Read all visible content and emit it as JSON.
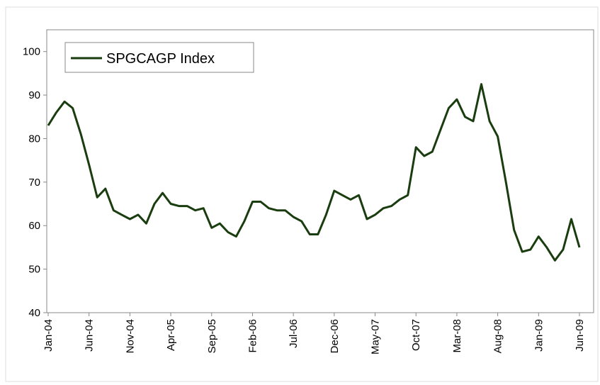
{
  "chart_data": {
    "type": "line",
    "categories": [
      "Jan-04",
      null,
      null,
      null,
      null,
      "Jun-04",
      null,
      null,
      null,
      null,
      "Nov-04",
      null,
      null,
      null,
      null,
      "Apr-05",
      null,
      null,
      null,
      null,
      "Sep-05",
      null,
      null,
      null,
      null,
      "Feb-06",
      null,
      null,
      null,
      null,
      "Jul-06",
      null,
      null,
      null,
      null,
      "Dec-06",
      null,
      null,
      null,
      null,
      "May-07",
      null,
      null,
      null,
      null,
      "Oct-07",
      null,
      null,
      null,
      null,
      "Mar-08",
      null,
      null,
      null,
      null,
      "Aug-08",
      null,
      null,
      null,
      null,
      "Jan-09",
      null,
      null,
      null,
      null,
      "Jun-09"
    ],
    "series": [
      {
        "name": "SPGCAGP Index",
        "color": "#1a3d0f",
        "values": [
          83,
          86,
          88.5,
          87,
          81,
          74,
          66.5,
          68.5,
          63.5,
          62.5,
          61.5,
          62.5,
          60.5,
          65,
          67.5,
          65,
          64.5,
          64.5,
          63.5,
          64,
          59.5,
          60.5,
          58.5,
          57.5,
          61,
          65.5,
          65.5,
          64,
          63.5,
          63.5,
          62,
          61,
          58,
          58,
          62.5,
          68,
          67,
          66,
          67,
          61.5,
          62.5,
          64,
          64.5,
          66,
          67,
          78,
          76,
          77,
          82,
          87,
          89,
          85,
          84,
          92.5,
          84,
          80.5,
          70,
          59,
          54,
          54.5,
          57.5,
          55,
          52,
          54.5,
          61.5,
          55
        ]
      }
    ],
    "ylim": [
      40,
      105
    ],
    "yticks": [
      40,
      50,
      60,
      70,
      80,
      90,
      100
    ],
    "legend": "upper left"
  }
}
